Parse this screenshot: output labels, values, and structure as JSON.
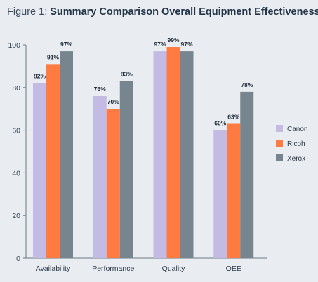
{
  "figure": {
    "label": "Figure 1:",
    "title": "Summary Comparison Overall Equipment Effectiveness"
  },
  "chart_data": {
    "type": "bar",
    "title": "Summary Comparison Overall Equipment Effectiveness",
    "categories": [
      "Availability",
      "Performance",
      "Quality",
      "OEE"
    ],
    "series": [
      {
        "name": "Canon",
        "color": "#c4bbe4",
        "values": [
          82,
          76,
          97,
          60
        ],
        "labels": [
          "82%",
          "76%",
          "97%",
          "60%"
        ]
      },
      {
        "name": "Ricoh",
        "color": "#ff7b42",
        "values": [
          91,
          70,
          99,
          63
        ],
        "labels": [
          "91%",
          "70%",
          "99%",
          "63%"
        ]
      },
      {
        "name": "Xerox",
        "color": "#77858e",
        "values": [
          97,
          83,
          97,
          78
        ],
        "labels": [
          "97%",
          "83%",
          "97%",
          "78%"
        ]
      }
    ],
    "ylim": [
      0,
      100
    ],
    "yticks": [
      0,
      20,
      40,
      60,
      80,
      100
    ],
    "xlabel": "",
    "ylabel": "",
    "grid": false,
    "legend": "right"
  }
}
